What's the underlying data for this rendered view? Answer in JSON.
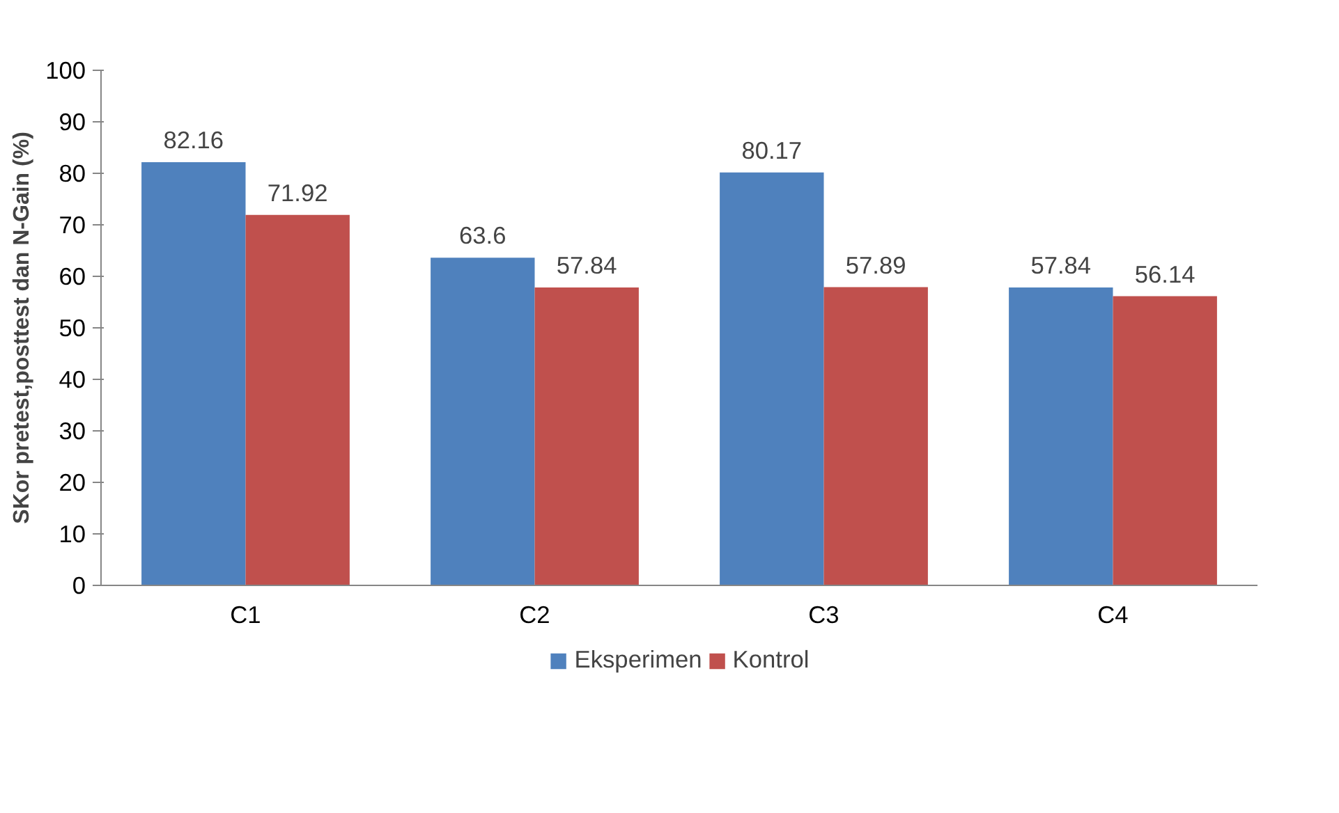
{
  "chart_data": {
    "type": "bar",
    "ylabel": "SKor pretest,posttest dan N-Gain (%)",
    "categories": [
      "C1",
      "C2",
      "C3",
      "C4"
    ],
    "series": [
      {
        "name": "Eksperimen",
        "color": "#4f81bd",
        "values": [
          82.16,
          63.6,
          80.17,
          57.84
        ]
      },
      {
        "name": "Kontrol",
        "color": "#c0504d",
        "values": [
          71.92,
          57.84,
          57.89,
          56.14
        ]
      }
    ],
    "ylim": [
      0,
      100
    ],
    "yticks": [
      0,
      10,
      20,
      30,
      40,
      50,
      60,
      70,
      80,
      90,
      100
    ],
    "grid": false,
    "legend": "bottom",
    "data_labels": true
  }
}
